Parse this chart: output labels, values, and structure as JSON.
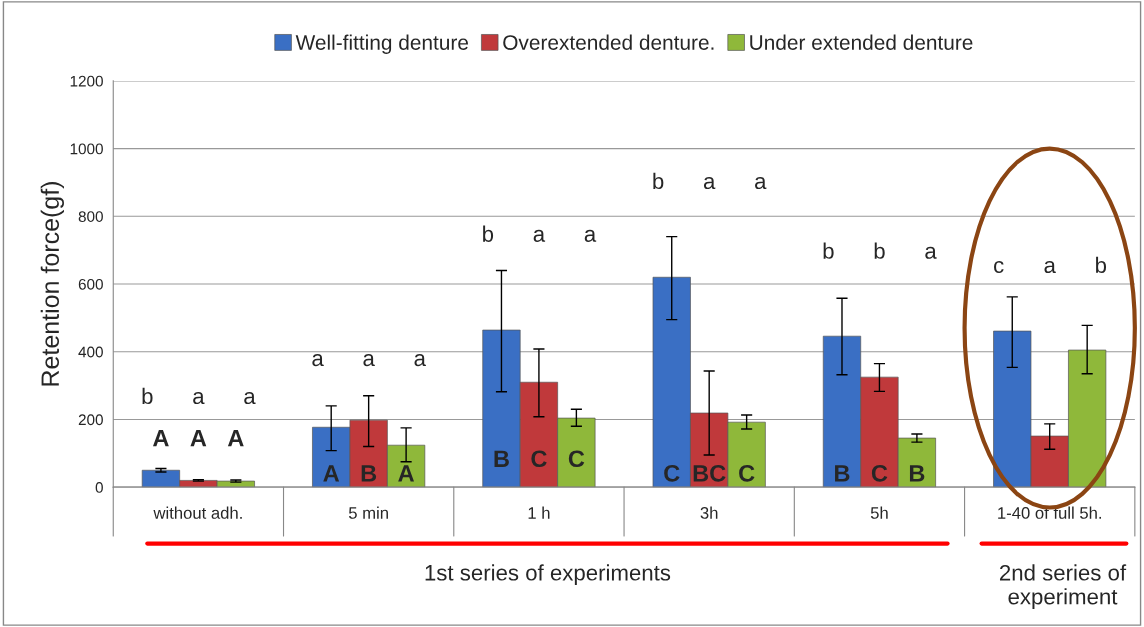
{
  "chart_data": {
    "type": "bar",
    "ylabel": "Retention force(gf)",
    "categories": [
      "without adh.",
      "5 min",
      "1 h",
      "3h",
      "5h",
      "1-40 of full 5h."
    ],
    "series": [
      {
        "name": "Well-fitting denture",
        "color": "#3a6fc4",
        "values": [
          50,
          177,
          464,
          620,
          446,
          461
        ],
        "errors": [
          [
            45,
            55
          ],
          [
            108,
            240
          ],
          [
            282,
            640
          ],
          [
            495,
            740
          ],
          [
            332,
            558
          ],
          [
            354,
            562
          ]
        ]
      },
      {
        "name": "Overextended denture.",
        "color": "#c0393b",
        "values": [
          20,
          198,
          310,
          219,
          325,
          151
        ],
        "errors": [
          [
            18,
            22
          ],
          [
            120,
            270
          ],
          [
            208,
            408
          ],
          [
            95,
            343
          ],
          [
            283,
            365
          ],
          [
            112,
            187
          ]
        ]
      },
      {
        "name": "Under extended denture",
        "color": "#8fb83a",
        "values": [
          18,
          124,
          204,
          192,
          145,
          405
        ],
        "errors": [
          [
            15,
            21
          ],
          [
            75,
            175
          ],
          [
            180,
            230
          ],
          [
            172,
            213
          ],
          [
            133,
            157
          ],
          [
            335,
            478
          ]
        ]
      }
    ],
    "ylim": [
      0,
      1200
    ],
    "yticks": [
      0,
      200,
      400,
      600,
      800,
      1000,
      1200
    ],
    "grid": "y",
    "legend": "top",
    "annotations": [
      "b",
      "a",
      "a",
      "A",
      "A",
      "A",
      "a",
      "a",
      "a",
      "A",
      "B",
      "A",
      "b",
      "a",
      "a",
      "B",
      "C",
      "C",
      "b",
      "a",
      "a",
      "C",
      "BC",
      "C",
      "b",
      "b",
      "a",
      "B",
      "C",
      "B",
      "c",
      "a",
      "b",
      "1st series of experiments",
      "2nd series of experiment"
    ]
  }
}
